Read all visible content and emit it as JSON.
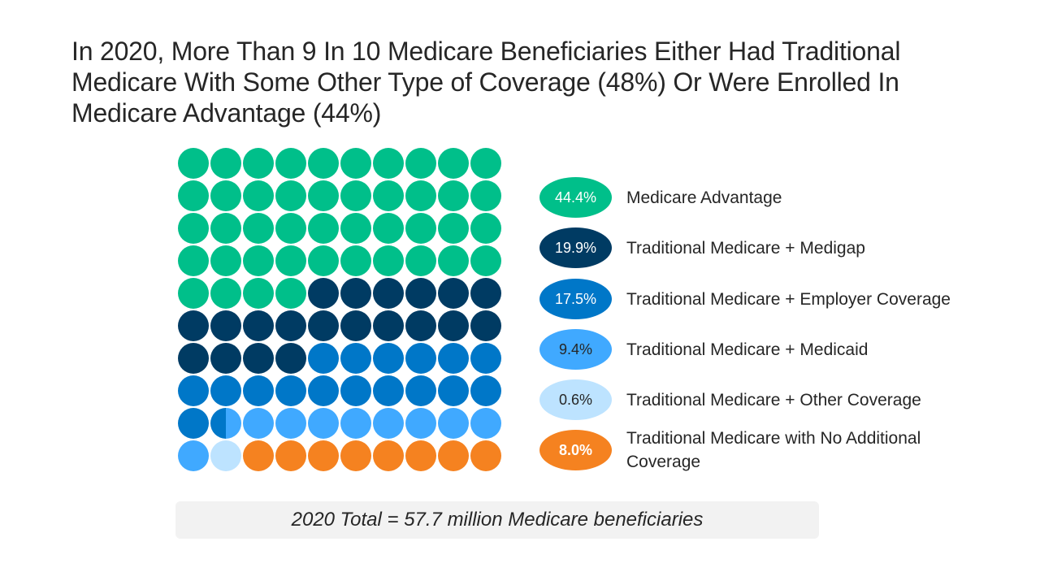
{
  "title": "In 2020, More Than 9 In 10 Medicare Beneficiaries Either Had Traditional Medicare With Some Other Type of Coverage (48%) Or Were Enrolled In Medicare Advantage (44%)",
  "footer": "2020 Total = 57.7 million Medicare beneficiaries",
  "chart_data": {
    "type": "waffle",
    "grid": {
      "rows": 10,
      "cols": 10
    },
    "unit_percent": 1,
    "categories": [
      {
        "name": "Medicare Advantage",
        "value": 44.4,
        "label": "44.4%",
        "color": "#00BF8A",
        "label_color": "#ffffff",
        "label_bold": false
      },
      {
        "name": "Traditional Medicare + Medigap",
        "value": 19.9,
        "label": "19.9%",
        "color": "#003B63",
        "label_color": "#ffffff",
        "label_bold": false
      },
      {
        "name": "Traditional Medicare + Employer Coverage",
        "value": 17.5,
        "label": "17.5%",
        "color": "#0077C8",
        "label_color": "#ffffff",
        "label_bold": false
      },
      {
        "name": "Traditional Medicare + Medicaid",
        "value": 9.4,
        "label": "9.4%",
        "color": "#40A9FF",
        "label_color": "#262626",
        "label_bold": false
      },
      {
        "name": "Traditional Medicare + Other Coverage",
        "value": 0.6,
        "label": "0.6%",
        "color": "#BDE3FF",
        "label_color": "#262626",
        "label_bold": false
      },
      {
        "name": "Traditional Medicare with No Additional Coverage",
        "value": 8.0,
        "label": "8.0%",
        "color": "#F58220",
        "label_color": "#ffffff",
        "label_bold": true
      }
    ],
    "cells": [
      "A",
      "A",
      "A",
      "A",
      "A",
      "A",
      "A",
      "A",
      "A",
      "A",
      "A",
      "A",
      "A",
      "A",
      "A",
      "A",
      "A",
      "A",
      "A",
      "A",
      "A",
      "A",
      "A",
      "A",
      "A",
      "A",
      "A",
      "A",
      "A",
      "A",
      "A",
      "A",
      "A",
      "A",
      "A",
      "A",
      "A",
      "A",
      "A",
      "A",
      "A",
      "A",
      "A",
      "A",
      "B",
      "B",
      "B",
      "B",
      "B",
      "B",
      "B",
      "B",
      "B",
      "B",
      "B",
      "B",
      "B",
      "B",
      "B",
      "B",
      "B",
      "B",
      "B",
      "B",
      "C",
      "C",
      "C",
      "C",
      "C",
      "C",
      "C",
      "C",
      "C",
      "C",
      "C",
      "C",
      "C",
      "C",
      "C",
      "C",
      "C",
      "C|D",
      "D",
      "D",
      "D",
      "D",
      "D",
      "D",
      "D",
      "D",
      "D",
      "E",
      "F",
      "F",
      "F",
      "F",
      "F",
      "F",
      "F",
      "F"
    ],
    "cell_keys": {
      "A": 0,
      "B": 1,
      "C": 2,
      "D": 3,
      "E": 4,
      "F": 5
    }
  }
}
